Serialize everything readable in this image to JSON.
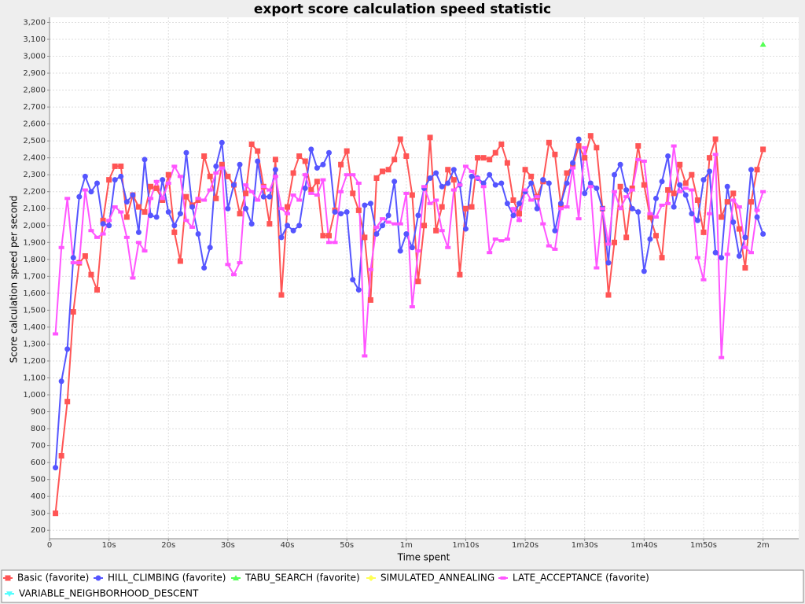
{
  "chart_data": {
    "type": "line",
    "title": "export score calculation speed statistic",
    "x_label": "Time spent",
    "y_label": "Score calculation speed per second",
    "xlim": [
      0,
      126
    ],
    "ylim": [
      150,
      3230
    ],
    "xticks": [
      0,
      {
        "value": 10,
        "label": "10s"
      },
      {
        "value": 20,
        "label": "20s"
      },
      {
        "value": 30,
        "label": "30s"
      },
      {
        "value": 40,
        "label": "40s"
      },
      {
        "value": 50,
        "label": "50s"
      },
      {
        "value": 60,
        "label": "1m"
      },
      {
        "value": 70,
        "label": "1m10s"
      },
      {
        "value": 80,
        "label": "1m20s"
      },
      {
        "value": 90,
        "label": "1m30s"
      },
      {
        "value": 100,
        "label": "1m40s"
      },
      {
        "value": 110,
        "label": "1m50s"
      },
      {
        "value": 120,
        "label": "2m"
      }
    ],
    "yticks": [
      200,
      300,
      400,
      500,
      600,
      700,
      800,
      900,
      {
        "value": 1000,
        "label": "1,000"
      },
      {
        "value": 1100,
        "label": "1,100"
      },
      {
        "value": 1200,
        "label": "1,200"
      },
      {
        "value": 1300,
        "label": "1,300"
      },
      {
        "value": 1400,
        "label": "1,400"
      },
      {
        "value": 1500,
        "label": "1,500"
      },
      {
        "value": 1600,
        "label": "1,600"
      },
      {
        "value": 1700,
        "label": "1,700"
      },
      {
        "value": 1800,
        "label": "1,800"
      },
      {
        "value": 1900,
        "label": "1,900"
      },
      {
        "value": 2000,
        "label": "2,000"
      },
      {
        "value": 2100,
        "label": "2,100"
      },
      {
        "value": 2200,
        "label": "2,200"
      },
      {
        "value": 2300,
        "label": "2,300"
      },
      {
        "value": 2400,
        "label": "2,400"
      },
      {
        "value": 2500,
        "label": "2,500"
      },
      {
        "value": 2600,
        "label": "2,600"
      },
      {
        "value": 2700,
        "label": "2,700"
      },
      {
        "value": 2800,
        "label": "2,800"
      },
      {
        "value": 2900,
        "label": "2,900"
      },
      {
        "value": 3000,
        "label": "3,000"
      },
      {
        "value": 3100,
        "label": "3,100"
      },
      {
        "value": 3200,
        "label": "3,200"
      }
    ],
    "grid": true,
    "legend": "bottom",
    "x": [
      1,
      2,
      3,
      4,
      5,
      6,
      7,
      8,
      9,
      10,
      11,
      12,
      13,
      14,
      15,
      16,
      17,
      18,
      19,
      20,
      21,
      22,
      23,
      24,
      25,
      26,
      27,
      28,
      29,
      30,
      31,
      32,
      33,
      34,
      35,
      36,
      37,
      38,
      39,
      40,
      41,
      42,
      43,
      44,
      45,
      46,
      47,
      48,
      49,
      50,
      51,
      52,
      53,
      54,
      55,
      56,
      57,
      58,
      59,
      60,
      61,
      62,
      63,
      64,
      65,
      66,
      67,
      68,
      69,
      70,
      71,
      72,
      73,
      74,
      75,
      76,
      77,
      78,
      79,
      80,
      81,
      82,
      83,
      84,
      85,
      86,
      87,
      88,
      89,
      90,
      91,
      92,
      93,
      94,
      95,
      96,
      97,
      98,
      99,
      100,
      101,
      102,
      103,
      104,
      105,
      106,
      107,
      108,
      109,
      110,
      111,
      112,
      113,
      114,
      115,
      116,
      117,
      118,
      119,
      120
    ],
    "series": [
      {
        "name": "Basic (favorite)",
        "color": "#ff5555",
        "values": [
          300,
          640,
          960,
          1490,
          1780,
          1820,
          1710,
          1620,
          2030,
          2270,
          2350,
          2350,
          2050,
          2180,
          2110,
          2080,
          2230,
          2220,
          2150,
          2300,
          1960,
          1790,
          2170,
          2120,
          2150,
          2410,
          2290,
          2160,
          2360,
          2290,
          2240,
          2070,
          2190,
          2480,
          2440,
          2230,
          2010,
          2390,
          1590,
          2110,
          2310,
          2410,
          2380,
          2210,
          2260,
          1940,
          1940,
          2090,
          2360,
          2440,
          2190,
          2090,
          1930,
          1560,
          2280,
          2320,
          2330,
          2390,
          2510,
          2410,
          2180,
          1670,
          2000,
          2520,
          1970,
          2110,
          2330,
          2270,
          1710,
          2100,
          2110,
          2400,
          2400,
          2390,
          2430,
          2480,
          2370,
          2150,
          2070,
          2330,
          2290,
          2170,
          2260,
          2490,
          2420,
          2120,
          2310,
          2350,
          2470,
          2400,
          2530,
          2460,
          2100,
          1590,
          1900,
          2230,
          1930,
          2220,
          2470,
          2240,
          2050,
          1940,
          1810,
          2210,
          2190,
          2360,
          2250,
          2300,
          2150,
          1960,
          2400,
          2510,
          2050,
          2140,
          2190,
          1980,
          1750,
          2140,
          2330,
          2450
        ]
      },
      {
        "name": "HILL_CLIMBING (favorite)",
        "color": "#5555ff",
        "values": [
          570,
          1080,
          1270,
          1810,
          2170,
          2290,
          2200,
          2250,
          2010,
          2000,
          2270,
          2290,
          2140,
          2180,
          1960,
          2390,
          2060,
          2050,
          2270,
          2080,
          2000,
          2070,
          2430,
          2110,
          1950,
          1750,
          1870,
          2350,
          2490,
          2100,
          2240,
          2360,
          2100,
          2010,
          2380,
          2170,
          2170,
          2330,
          1930,
          2000,
          1970,
          2000,
          2220,
          2450,
          2340,
          2360,
          2430,
          2080,
          2070,
          2080,
          1680,
          1620,
          2120,
          2130,
          1950,
          2000,
          2060,
          2260,
          1850,
          1950,
          1870,
          2060,
          2220,
          2280,
          2310,
          2230,
          2250,
          2330,
          2240,
          1980,
          2290,
          2280,
          2250,
          2300,
          2240,
          2250,
          2130,
          2060,
          2130,
          2200,
          2250,
          2100,
          2270,
          2250,
          1970,
          2130,
          2250,
          2370,
          2510,
          2190,
          2250,
          2220,
          2100,
          1780,
          2300,
          2360,
          2210,
          2100,
          2080,
          1730,
          1920,
          2160,
          2260,
          2410,
          2110,
          2240,
          2180,
          2070,
          2030,
          2270,
          2320,
          1840,
          1810,
          2230,
          2020,
          1820,
          1930,
          2330,
          2050,
          1950
        ]
      },
      {
        "name": "TABU_SEARCH (favorite)",
        "color": "#55ff55",
        "x": [
          120
        ],
        "values": [
          3070
        ]
      },
      {
        "name": "SIMULATED_ANNEALING",
        "color": "#ffff55",
        "x": [],
        "values": []
      },
      {
        "name": "LATE_ACCEPTANCE (favorite)",
        "color": "#ff55ff",
        "values": [
          1360,
          1870,
          2160,
          1780,
          1780,
          2210,
          1970,
          1930,
          1950,
          2030,
          2110,
          2080,
          1930,
          1690,
          1900,
          1850,
          2160,
          2260,
          2160,
          2250,
          2350,
          2290,
          2030,
          1990,
          2160,
          2150,
          2210,
          2310,
          2340,
          1770,
          1710,
          1780,
          2240,
          2200,
          2150,
          2230,
          2210,
          2290,
          2100,
          2070,
          2180,
          2150,
          2300,
          2190,
          2180,
          2270,
          1900,
          1900,
          2200,
          2300,
          2300,
          2250,
          1230,
          1740,
          1990,
          2040,
          2020,
          2010,
          2010,
          2190,
          1520,
          1850,
          2230,
          2130,
          2150,
          1970,
          1870,
          2210,
          2240,
          2350,
          2320,
          2280,
          2230,
          1840,
          1920,
          1910,
          1920,
          2100,
          2030,
          2210,
          2150,
          2170,
          2010,
          1880,
          1860,
          2100,
          2110,
          2340,
          2040,
          2460,
          2230,
          1750,
          2100,
          1890,
          2200,
          2100,
          2170,
          2210,
          2390,
          2380,
          2070,
          2050,
          2120,
          2130,
          2470,
          2200,
          2220,
          2210,
          1810,
          1680,
          2070,
          2420,
          1220,
          1830,
          2150,
          2110,
          1870,
          1840,
          2090,
          2200
        ]
      },
      {
        "name": "VARIABLE_NEIGHBORHOOD_DESCENT",
        "color": "#55ffff",
        "x": [],
        "values": []
      }
    ]
  }
}
